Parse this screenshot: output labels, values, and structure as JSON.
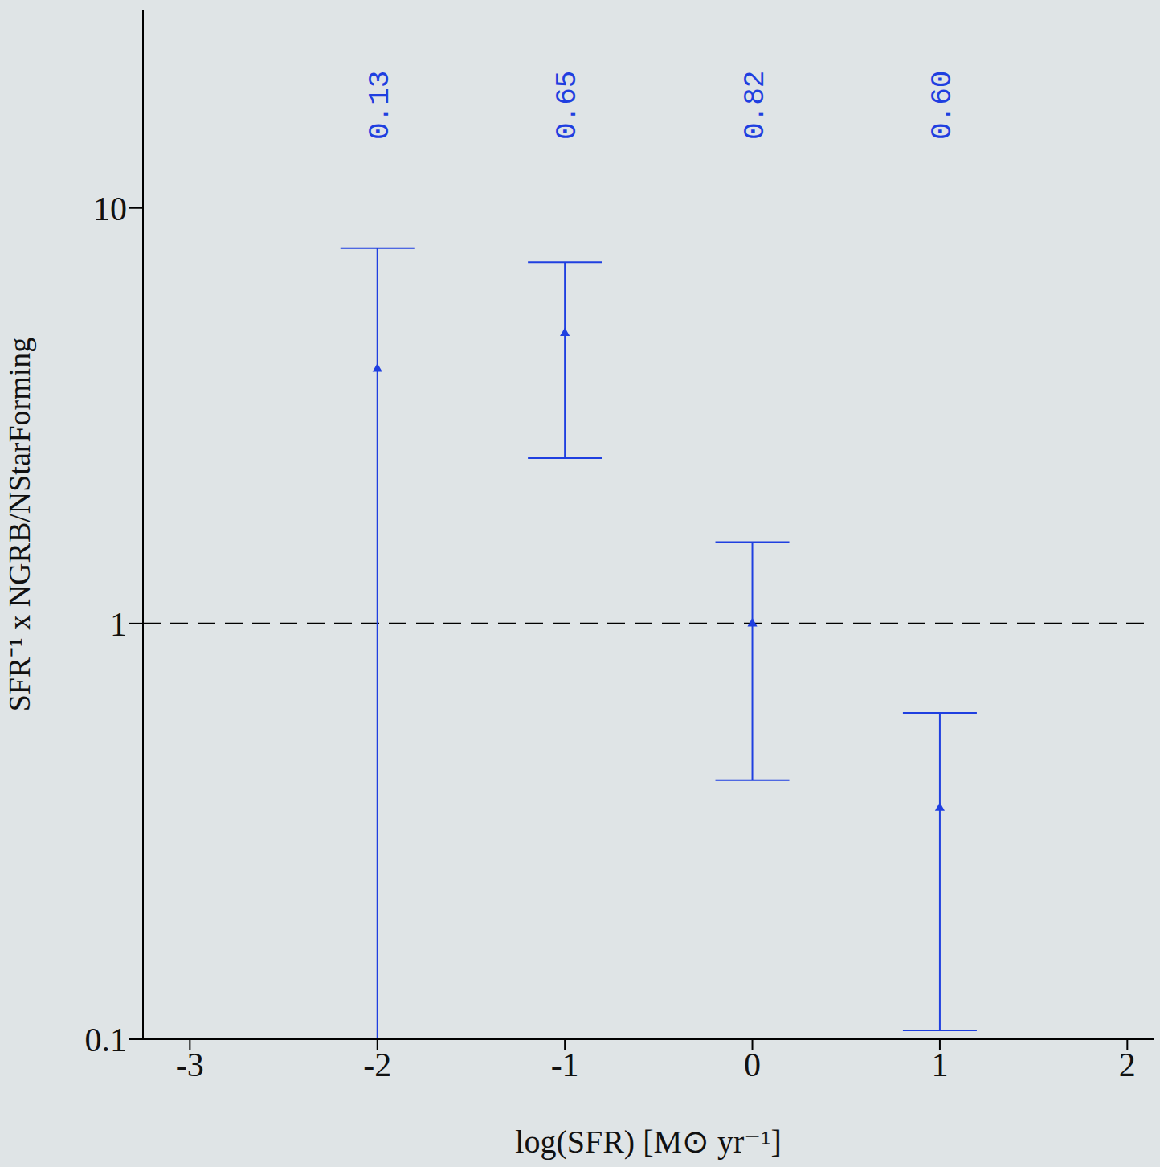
{
  "chart_data": {
    "type": "scatter",
    "xlabel": "log(SFR) [M⊙ yr⁻¹]",
    "ylabel": "SFR⁻¹ x NGRB/NStarForming",
    "x": [
      -2,
      -1,
      0,
      1
    ],
    "values": [
      4.1,
      5.0,
      1.0,
      0.36
    ],
    "y_low": [
      0.1,
      2.5,
      0.42,
      0.105
    ],
    "y_high": [
      8.0,
      7.4,
      1.57,
      0.61
    ],
    "color": "#1f3fe0",
    "marker": "triangle",
    "log": "y",
    "xlim": [
      -3.25,
      2.14
    ],
    "ylim": [
      0.1,
      30
    ],
    "xticks": [
      -3,
      -2,
      -1,
      0,
      1,
      2
    ],
    "yticks": [
      0.1,
      1,
      10
    ],
    "hline": 1,
    "annotations": [
      {
        "x": -2,
        "text": "0.13"
      },
      {
        "x": -1,
        "text": "0.65"
      },
      {
        "x": 0,
        "text": "0.82"
      },
      {
        "x": 1,
        "text": "0.60"
      }
    ],
    "grid": false
  }
}
